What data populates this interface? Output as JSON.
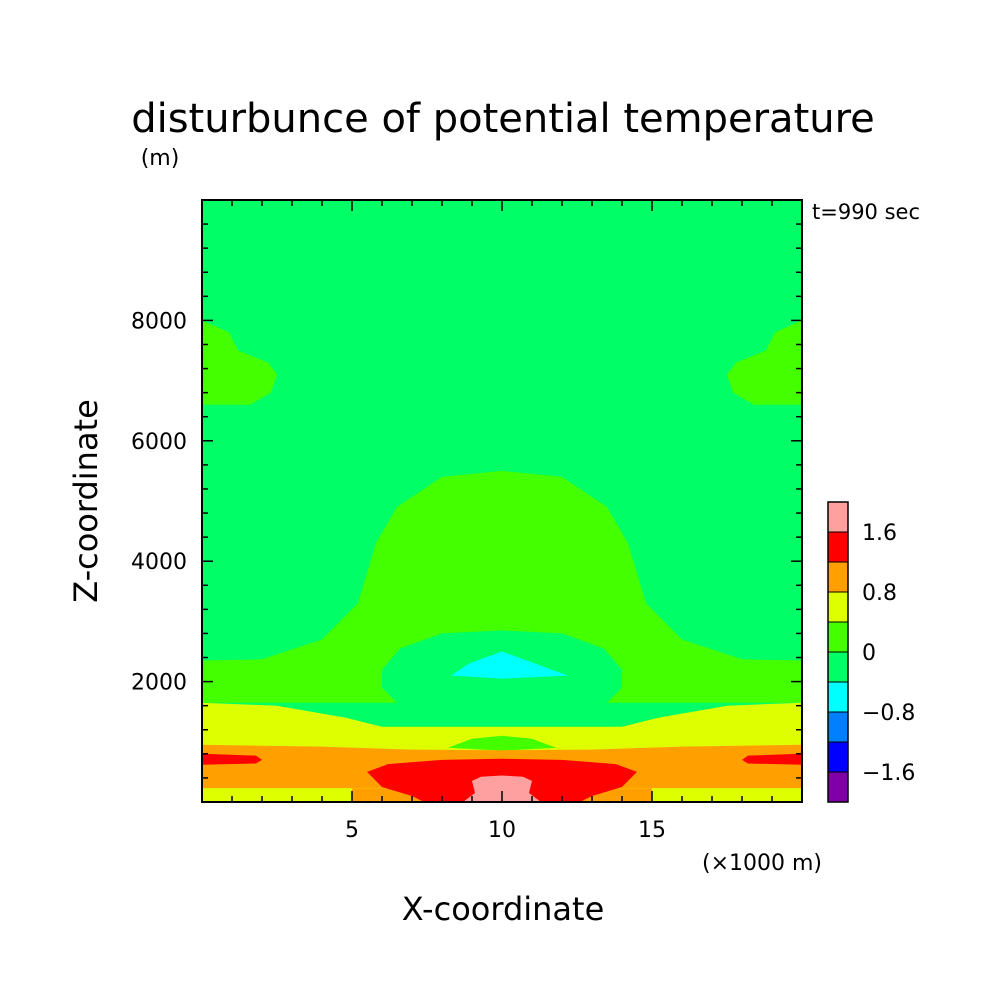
{
  "chart_data": {
    "type": "contour",
    "title": "disturbunce of potential temperature",
    "unit_label": "(m)",
    "time_label": "t=990 sec",
    "xlabel": "X-coordinate",
    "ylabel": "Z-coordinate",
    "x_unit_label": "(×1000 m)",
    "xlim": [
      0,
      20
    ],
    "ylim": [
      0,
      10000
    ],
    "x_ticks": [
      {
        "value": 5,
        "label": "5"
      },
      {
        "value": 10,
        "label": "10"
      },
      {
        "value": 15,
        "label": "15"
      }
    ],
    "y_ticks": [
      {
        "value": 2000,
        "label": "2000"
      },
      {
        "value": 4000,
        "label": "4000"
      },
      {
        "value": 6000,
        "label": "6000"
      },
      {
        "value": 8000,
        "label": "8000"
      }
    ],
    "x_minor_step": 1,
    "y_minor_step": 400,
    "levels": [
      {
        "min": -2.0,
        "max": -1.6,
        "color": "#7f00a8"
      },
      {
        "min": -1.6,
        "max": -1.2,
        "color": "#0000ff"
      },
      {
        "min": -1.2,
        "max": -0.8,
        "color": "#0080ff"
      },
      {
        "min": -0.8,
        "max": -0.4,
        "color": "#00ffff"
      },
      {
        "min": -0.4,
        "max": 0.0,
        "color": "#00ff66"
      },
      {
        "min": 0.0,
        "max": 0.4,
        "color": "#44ff00"
      },
      {
        "min": 0.4,
        "max": 0.8,
        "color": "#ddff00"
      },
      {
        "min": 0.8,
        "max": 1.2,
        "color": "#ffa000"
      },
      {
        "min": 1.2,
        "max": 1.6,
        "color": "#ff0000"
      },
      {
        "min": 1.6,
        "max": 2.0,
        "color": "#ffa0a0"
      }
    ],
    "colorbar_labels": [
      {
        "value": 1.6,
        "label": "1.6"
      },
      {
        "value": 0.8,
        "label": "0.8"
      },
      {
        "value": 0.0,
        "label": "0"
      },
      {
        "value": -0.8,
        "label": "−0.8"
      },
      {
        "value": -1.6,
        "label": "−1.6"
      }
    ],
    "regions": [
      {
        "level": 5,
        "color": "#44ff00",
        "points": [
          [
            0,
            2350
          ],
          [
            2,
            2370
          ],
          [
            4,
            2700
          ],
          [
            5.2,
            3300
          ],
          [
            5.8,
            4300
          ],
          [
            6.5,
            4900
          ],
          [
            8,
            5400
          ],
          [
            10,
            5500
          ],
          [
            12,
            5400
          ],
          [
            13.5,
            4900
          ],
          [
            14.2,
            4300
          ],
          [
            14.8,
            3300
          ],
          [
            16,
            2700
          ],
          [
            18,
            2370
          ],
          [
            20,
            2350
          ],
          [
            20,
            1650
          ],
          [
            0,
            1650
          ]
        ]
      },
      {
        "level": 5,
        "color": "#44ff00",
        "points": [
          [
            0,
            8000
          ],
          [
            0.9,
            7800
          ],
          [
            1.2,
            7500
          ],
          [
            2.2,
            7300
          ],
          [
            2.5,
            7100
          ],
          [
            2.3,
            6800
          ],
          [
            1.6,
            6600
          ],
          [
            0,
            6600
          ]
        ]
      },
      {
        "level": 5,
        "color": "#44ff00",
        "points": [
          [
            20,
            8000
          ],
          [
            19.1,
            7800
          ],
          [
            18.8,
            7500
          ],
          [
            17.8,
            7300
          ],
          [
            17.5,
            7100
          ],
          [
            17.7,
            6800
          ],
          [
            18.4,
            6600
          ],
          [
            20,
            6600
          ]
        ]
      },
      {
        "level": 4,
        "color": "#00ff66",
        "points": [
          [
            6,
            2200
          ],
          [
            6.6,
            2550
          ],
          [
            8,
            2800
          ],
          [
            10,
            2850
          ],
          [
            12,
            2800
          ],
          [
            13.4,
            2550
          ],
          [
            14,
            2200
          ],
          [
            14,
            1900
          ],
          [
            13.3,
            1550
          ],
          [
            12,
            1400
          ],
          [
            10,
            1350
          ],
          [
            8,
            1400
          ],
          [
            6.7,
            1550
          ],
          [
            6,
            1900
          ]
        ]
      },
      {
        "level": 3,
        "color": "#00ffff",
        "points": [
          [
            8.3,
            2100
          ],
          [
            8.9,
            2300
          ],
          [
            10,
            2500
          ],
          [
            11.1,
            2300
          ],
          [
            12.2,
            2100
          ],
          [
            10,
            2050
          ]
        ]
      },
      {
        "level": 6,
        "color": "#ddff00",
        "points": [
          [
            0,
            1650
          ],
          [
            2.5,
            1600
          ],
          [
            4.8,
            1400
          ],
          [
            6,
            1250
          ],
          [
            14,
            1250
          ],
          [
            15.2,
            1400
          ],
          [
            17.5,
            1600
          ],
          [
            20,
            1650
          ],
          [
            20,
            0
          ],
          [
            0,
            0
          ]
        ]
      },
      {
        "level": 5,
        "color": "#44ff00",
        "points": [
          [
            8.2,
            900
          ],
          [
            9,
            1050
          ],
          [
            10,
            1100
          ],
          [
            11,
            1050
          ],
          [
            11.8,
            900
          ],
          [
            10,
            850
          ]
        ]
      },
      {
        "level": 7,
        "color": "#ffa000",
        "points": [
          [
            0,
            950
          ],
          [
            4,
            920
          ],
          [
            7,
            870
          ],
          [
            10,
            860
          ],
          [
            13,
            870
          ],
          [
            16,
            920
          ],
          [
            20,
            950
          ],
          [
            20,
            230
          ],
          [
            0,
            230
          ]
        ]
      },
      {
        "level": 6,
        "color": "#ddff00",
        "points": [
          [
            0,
            230
          ],
          [
            20,
            230
          ],
          [
            20,
            0
          ],
          [
            0,
            0
          ]
        ]
      },
      {
        "level": 7,
        "color": "#ffa000",
        "points": [
          [
            5,
            230
          ],
          [
            15,
            230
          ],
          [
            15,
            0
          ],
          [
            5,
            0
          ]
        ]
      },
      {
        "level": 8,
        "color": "#ff0000",
        "points": [
          [
            0,
            800
          ],
          [
            1.8,
            770
          ],
          [
            2,
            700
          ],
          [
            1.8,
            640
          ],
          [
            0,
            620
          ]
        ]
      },
      {
        "level": 8,
        "color": "#ff0000",
        "points": [
          [
            20,
            800
          ],
          [
            18.2,
            770
          ],
          [
            18,
            700
          ],
          [
            18.2,
            640
          ],
          [
            20,
            620
          ]
        ]
      },
      {
        "level": 8,
        "color": "#ff0000",
        "points": [
          [
            5.5,
            500
          ],
          [
            6.2,
            630
          ],
          [
            8,
            700
          ],
          [
            10,
            720
          ],
          [
            12,
            700
          ],
          [
            13.8,
            630
          ],
          [
            14.5,
            500
          ],
          [
            14,
            250
          ],
          [
            13,
            100
          ],
          [
            12.6,
            0
          ],
          [
            7.4,
            0
          ],
          [
            7,
            100
          ],
          [
            6,
            250
          ]
        ]
      },
      {
        "level": 9,
        "color": "#ffa0a0",
        "points": [
          [
            9,
            350
          ],
          [
            9.3,
            420
          ],
          [
            10,
            440
          ],
          [
            10.7,
            420
          ],
          [
            11,
            350
          ],
          [
            10.9,
            150
          ],
          [
            11.3,
            0
          ],
          [
            8.7,
            0
          ],
          [
            9.1,
            150
          ]
        ]
      }
    ]
  }
}
